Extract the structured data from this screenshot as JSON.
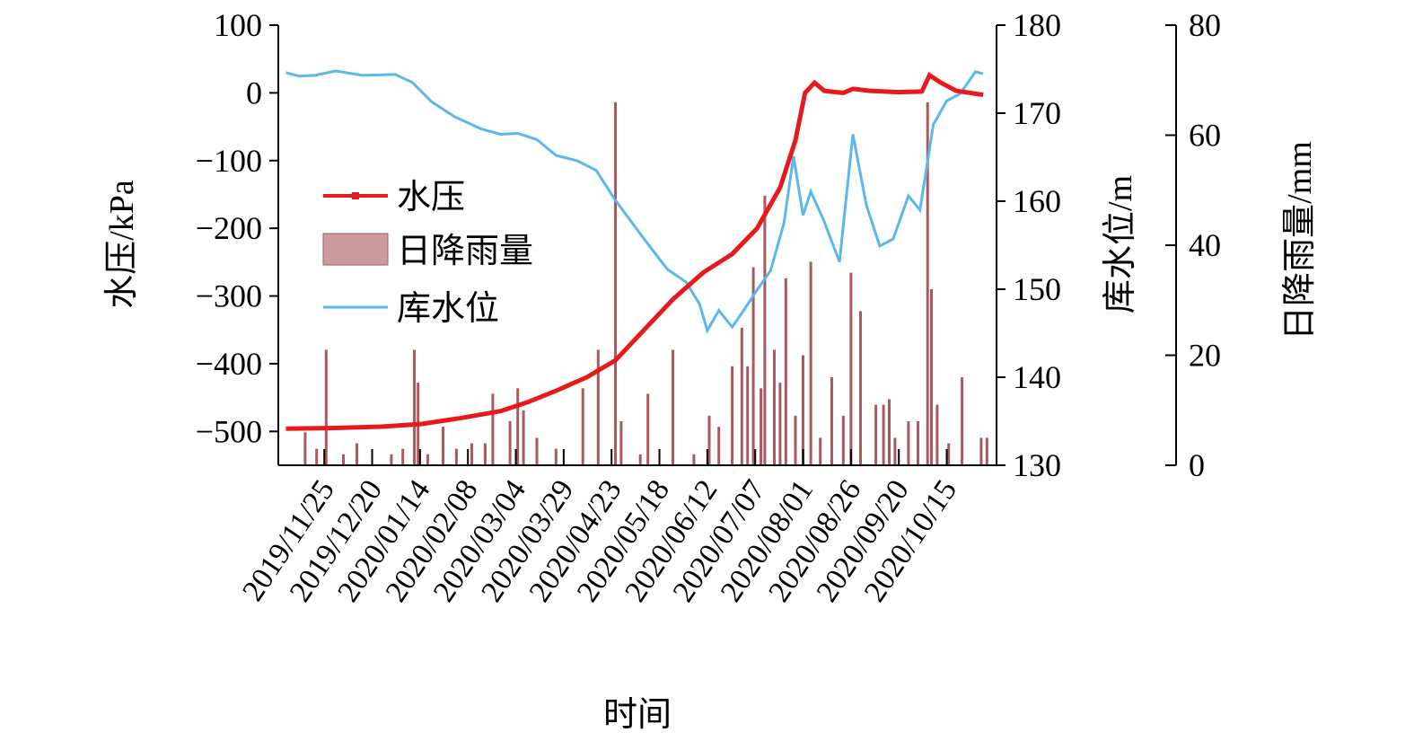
{
  "chart_data": {
    "type": "line",
    "title": "",
    "xlabel": "时间",
    "x_tick_labels": [
      "2019/11/25",
      "2019/12/20",
      "2020/01/14",
      "2020/02/08",
      "2020/03/04",
      "2020/03/29",
      "2020/04/23",
      "2020/05/18",
      "2020/06/12",
      "2020/07/07",
      "2020/08/01",
      "2020/08/26",
      "2020/09/20",
      "2020/10/15"
    ],
    "x_range": [
      "2019/11/01",
      "2020/11/10"
    ],
    "axes": {
      "left": {
        "label": "水压/kPa",
        "ylim": [
          -550,
          100
        ],
        "ticks": [
          100,
          0,
          -100,
          -200,
          -300,
          -400,
          -500
        ]
      },
      "right1": {
        "label": "库水位/m",
        "ylim": [
          130,
          180
        ],
        "ticks": [
          180,
          170,
          160,
          150,
          140,
          130
        ]
      },
      "right2": {
        "label": "日降雨量/mm",
        "ylim": [
          0,
          80
        ],
        "ticks": [
          80,
          60,
          40,
          20,
          0
        ]
      }
    },
    "legend": {
      "position": "center-left",
      "entries": [
        "水压",
        "日降雨量",
        "库水位"
      ]
    },
    "colors": {
      "water_pressure": "#e8191b",
      "rainfall": "#a85a5f",
      "reservoir_level": "#5bb7ec"
    },
    "series": [
      {
        "name": "水压",
        "axis": "left",
        "type": "line",
        "points": [
          [
            "2019/11/05",
            -496
          ],
          [
            "2019/12/01",
            -495
          ],
          [
            "2019/12/25",
            -493
          ],
          [
            "2020/01/15",
            -489
          ],
          [
            "2020/02/05",
            -480
          ],
          [
            "2020/02/25",
            -470
          ],
          [
            "2020/03/10",
            -457
          ],
          [
            "2020/03/25",
            -440
          ],
          [
            "2020/04/10",
            -420
          ],
          [
            "2020/04/25",
            -395
          ],
          [
            "2020/05/10",
            -350
          ],
          [
            "2020/05/25",
            -305
          ],
          [
            "2020/06/10",
            -265
          ],
          [
            "2020/06/25",
            -238
          ],
          [
            "2020/07/08",
            -200
          ],
          [
            "2020/07/20",
            -140
          ],
          [
            "2020/07/28",
            -70
          ],
          [
            "2020/08/02",
            0
          ],
          [
            "2020/08/07",
            15
          ],
          [
            "2020/08/12",
            3
          ],
          [
            "2020/08/22",
            0
          ],
          [
            "2020/08/27",
            6
          ],
          [
            "2020/09/05",
            3
          ],
          [
            "2020/09/20",
            1
          ],
          [
            "2020/10/02",
            2
          ],
          [
            "2020/10/06",
            26
          ],
          [
            "2020/10/12",
            15
          ],
          [
            "2020/10/20",
            3
          ],
          [
            "2020/11/03",
            -3
          ]
        ]
      },
      {
        "name": "库水位",
        "axis": "right1",
        "type": "line",
        "points": [
          [
            "2019/11/05",
            174.6
          ],
          [
            "2019/11/12",
            174.2
          ],
          [
            "2019/11/20",
            174.3
          ],
          [
            "2019/12/01",
            174.8
          ],
          [
            "2019/12/15",
            174.3
          ],
          [
            "2020/01/01",
            174.4
          ],
          [
            "2020/01/10",
            173.5
          ],
          [
            "2020/01/20",
            171.3
          ],
          [
            "2020/02/01",
            169.6
          ],
          [
            "2020/02/15",
            168.2
          ],
          [
            "2020/02/25",
            167.6
          ],
          [
            "2020/03/05",
            167.7
          ],
          [
            "2020/03/15",
            167.0
          ],
          [
            "2020/03/25",
            165.2
          ],
          [
            "2020/04/05",
            164.6
          ],
          [
            "2020/04/15",
            163.5
          ],
          [
            "2020/04/25",
            160.1
          ],
          [
            "2020/05/10",
            155.7
          ],
          [
            "2020/05/22",
            152.3
          ],
          [
            "2020/06/01",
            150.8
          ],
          [
            "2020/06/08",
            148.3
          ],
          [
            "2020/06/12",
            145.3
          ],
          [
            "2020/06/18",
            147.6
          ],
          [
            "2020/06/25",
            145.7
          ],
          [
            "2020/07/01",
            147.6
          ],
          [
            "2020/07/07",
            149.6
          ],
          [
            "2020/07/15",
            152.1
          ],
          [
            "2020/07/22",
            157.5
          ],
          [
            "2020/07/27",
            165.1
          ],
          [
            "2020/08/01",
            158.4
          ],
          [
            "2020/08/05",
            161.1
          ],
          [
            "2020/08/12",
            157.7
          ],
          [
            "2020/08/20",
            153.1
          ],
          [
            "2020/08/27",
            167.6
          ],
          [
            "2020/09/03",
            159.6
          ],
          [
            "2020/09/10",
            154.9
          ],
          [
            "2020/09/17",
            155.7
          ],
          [
            "2020/09/25",
            160.6
          ],
          [
            "2020/10/01",
            159.0
          ],
          [
            "2020/10/08",
            168.7
          ],
          [
            "2020/10/15",
            171.4
          ],
          [
            "2020/10/22",
            172.2
          ],
          [
            "2020/10/30",
            174.7
          ],
          [
            "2020/11/03",
            174.5
          ]
        ]
      },
      {
        "name": "日降雨量",
        "axis": "right2",
        "type": "bar",
        "points": [
          [
            "2019/11/15",
            6
          ],
          [
            "2019/11/21",
            3
          ],
          [
            "2019/11/26",
            21
          ],
          [
            "2019/12/05",
            2
          ],
          [
            "2019/12/12",
            4
          ],
          [
            "2019/12/30",
            2
          ],
          [
            "2020/01/05",
            3
          ],
          [
            "2020/01/11",
            21
          ],
          [
            "2020/01/13",
            15
          ],
          [
            "2020/01/18",
            2
          ],
          [
            "2020/01/26",
            7
          ],
          [
            "2020/02/02",
            3
          ],
          [
            "2020/02/10",
            4
          ],
          [
            "2020/02/17",
            4
          ],
          [
            "2020/02/21",
            13
          ],
          [
            "2020/03/01",
            8
          ],
          [
            "2020/03/05",
            14
          ],
          [
            "2020/03/08",
            10
          ],
          [
            "2020/03/15",
            5
          ],
          [
            "2020/03/25",
            3
          ],
          [
            "2020/04/08",
            14
          ],
          [
            "2020/04/16",
            21
          ],
          [
            "2020/04/25",
            66
          ],
          [
            "2020/04/28",
            8
          ],
          [
            "2020/05/08",
            2
          ],
          [
            "2020/05/12",
            13
          ],
          [
            "2020/05/25",
            21
          ],
          [
            "2020/06/05",
            2
          ],
          [
            "2020/06/13",
            9
          ],
          [
            "2020/06/18",
            7
          ],
          [
            "2020/06/25",
            18
          ],
          [
            "2020/06/30",
            25
          ],
          [
            "2020/07/03",
            18
          ],
          [
            "2020/07/06",
            36
          ],
          [
            "2020/07/10",
            14
          ],
          [
            "2020/07/12",
            49
          ],
          [
            "2020/07/17",
            21
          ],
          [
            "2020/07/20",
            15
          ],
          [
            "2020/07/23",
            34
          ],
          [
            "2020/07/28",
            9
          ],
          [
            "2020/08/01",
            20
          ],
          [
            "2020/08/05",
            37
          ],
          [
            "2020/08/10",
            5
          ],
          [
            "2020/08/16",
            16
          ],
          [
            "2020/08/22",
            9
          ],
          [
            "2020/08/26",
            35
          ],
          [
            "2020/08/31",
            28
          ],
          [
            "2020/09/08",
            11
          ],
          [
            "2020/09/12",
            11
          ],
          [
            "2020/09/15",
            12
          ],
          [
            "2020/09/18",
            5
          ],
          [
            "2020/09/25",
            8
          ],
          [
            "2020/09/30",
            8
          ],
          [
            "2020/10/05",
            66
          ],
          [
            "2020/10/07",
            32
          ],
          [
            "2020/10/10",
            11
          ],
          [
            "2020/10/16",
            4
          ],
          [
            "2020/10/23",
            16
          ],
          [
            "2020/11/02",
            5
          ],
          [
            "2020/11/05",
            5
          ]
        ]
      }
    ]
  }
}
